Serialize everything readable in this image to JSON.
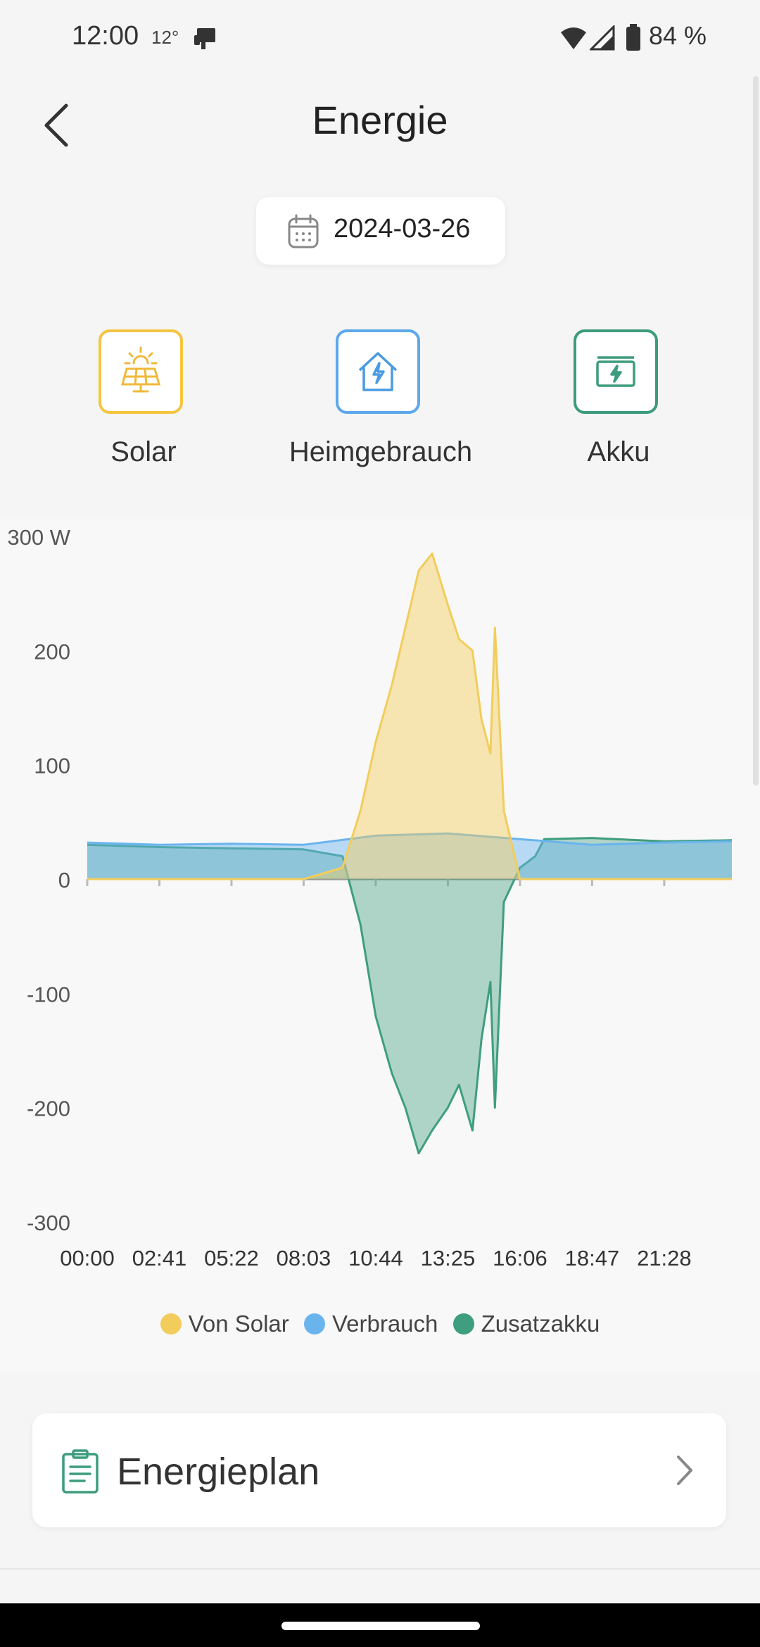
{
  "status_bar": {
    "time": "12:00",
    "temperature": "12°",
    "battery": "84 %"
  },
  "header": {
    "title": "Energie",
    "back_icon": "chevron-left-icon"
  },
  "date_picker": {
    "date": "2024-03-26",
    "icon": "calendar-icon"
  },
  "categories": [
    {
      "label": "Solar",
      "icon": "solar-panel-icon",
      "color": "#F5C542"
    },
    {
      "label": "Heimgebrauch",
      "icon": "house-bolt-icon",
      "color": "#5EA8EC"
    },
    {
      "label": "Akku",
      "icon": "battery-bolt-icon",
      "color": "#3D9C7E"
    }
  ],
  "chart_data": {
    "type": "area",
    "unit": "W",
    "yticks": [
      "300 W",
      "200",
      "100",
      "0",
      "-100",
      "-200",
      "-300"
    ],
    "ylim": [
      -300,
      300
    ],
    "xticks": [
      "00:00",
      "02:41",
      "05:22",
      "08:03",
      "10:44",
      "13:25",
      "16:06",
      "18:47",
      "21:28"
    ],
    "series": [
      {
        "name": "Von Solar",
        "color": "#F2CD5C",
        "fill": "rgba(245,205,90,0.45)",
        "x": [
          "00:00",
          "02:41",
          "05:22",
          "08:03",
          "09:30",
          "10:10",
          "10:44",
          "11:20",
          "11:50",
          "12:20",
          "12:50",
          "13:25",
          "13:50",
          "14:20",
          "14:40",
          "15:00",
          "15:10",
          "15:30",
          "16:06",
          "18:47",
          "21:28",
          "23:59"
        ],
        "values": [
          0,
          0,
          0,
          0,
          10,
          60,
          120,
          170,
          220,
          270,
          285,
          240,
          210,
          200,
          140,
          110,
          220,
          60,
          0,
          0,
          0,
          0
        ]
      },
      {
        "name": "Verbrauch",
        "color": "#6AB4EE",
        "fill": "rgba(106,180,238,0.45)",
        "x": [
          "00:00",
          "02:41",
          "05:22",
          "08:03",
          "10:44",
          "13:25",
          "16:06",
          "18:47",
          "21:28",
          "23:59"
        ],
        "values": [
          32,
          30,
          31,
          30,
          38,
          40,
          35,
          30,
          32,
          33
        ]
      },
      {
        "name": "Zusatzakku",
        "color": "#3E9E7F",
        "fill": "rgba(62,158,127,0.4)",
        "x": [
          "00:00",
          "02:41",
          "05:22",
          "08:03",
          "09:30",
          "10:10",
          "10:44",
          "11:20",
          "11:50",
          "12:20",
          "12:50",
          "13:25",
          "13:50",
          "14:20",
          "14:40",
          "15:00",
          "15:10",
          "15:30",
          "16:06",
          "16:40",
          "17:00",
          "18:47",
          "21:28",
          "23:59"
        ],
        "values": [
          30,
          28,
          27,
          26,
          20,
          -40,
          -120,
          -170,
          -200,
          -240,
          -220,
          -200,
          -180,
          -220,
          -140,
          -90,
          -200,
          -20,
          10,
          20,
          35,
          36,
          33,
          34
        ]
      }
    ],
    "grid": false,
    "legend": "bottom"
  },
  "energy_plan": {
    "title": "Energieplan",
    "icon": "clipboard-icon",
    "chevron_icon": "chevron-right-icon"
  }
}
